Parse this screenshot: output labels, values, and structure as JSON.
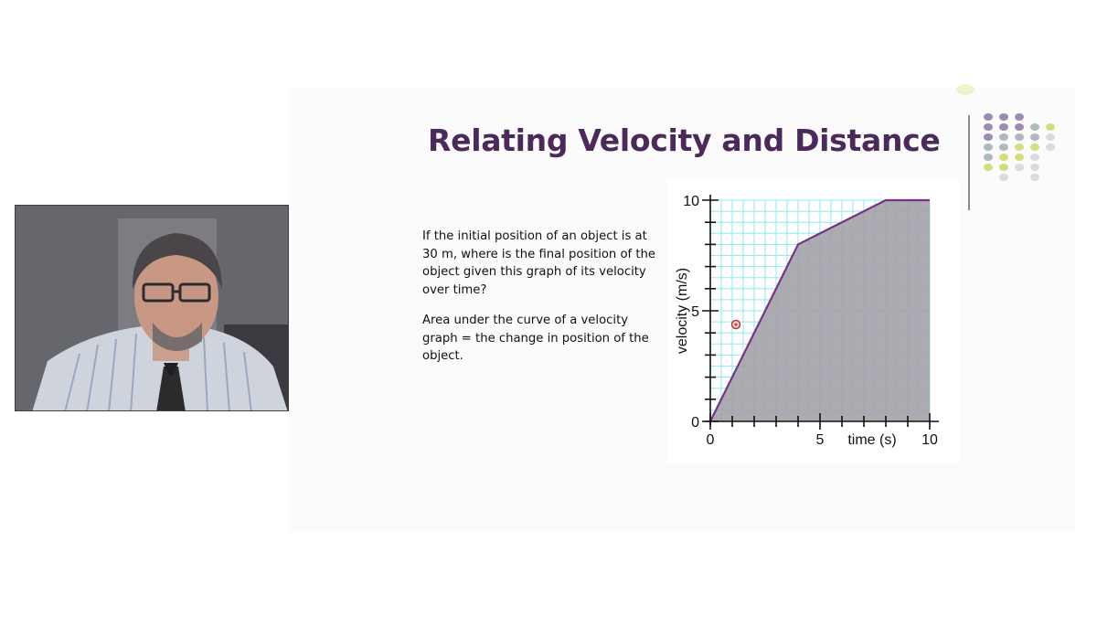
{
  "slide": {
    "title": "Relating Velocity and Distance",
    "question": "If the initial position of an object is at 30 m, where is the final  position of the object given this graph of its velocity over time?",
    "note": "Area under the curve of a  velocity graph = the change in position of the object."
  },
  "chart_data": {
    "type": "area",
    "xlabel": "time (s)",
    "ylabel": "velocity (m/s)",
    "xlim": [
      0,
      10
    ],
    "ylim": [
      0,
      10
    ],
    "x_tick_labels": [
      "0",
      "5",
      "10"
    ],
    "y_tick_labels": [
      "0",
      "5",
      "10"
    ],
    "grid": true,
    "series": [
      {
        "x": [
          0,
          4,
          8,
          10
        ],
        "y": [
          0,
          8,
          10,
          10
        ]
      }
    ]
  },
  "colors": {
    "title": "#4b2a59",
    "line": "#7a2f88",
    "grid": "#8fe9ef",
    "fill": "#a4a4aa"
  }
}
